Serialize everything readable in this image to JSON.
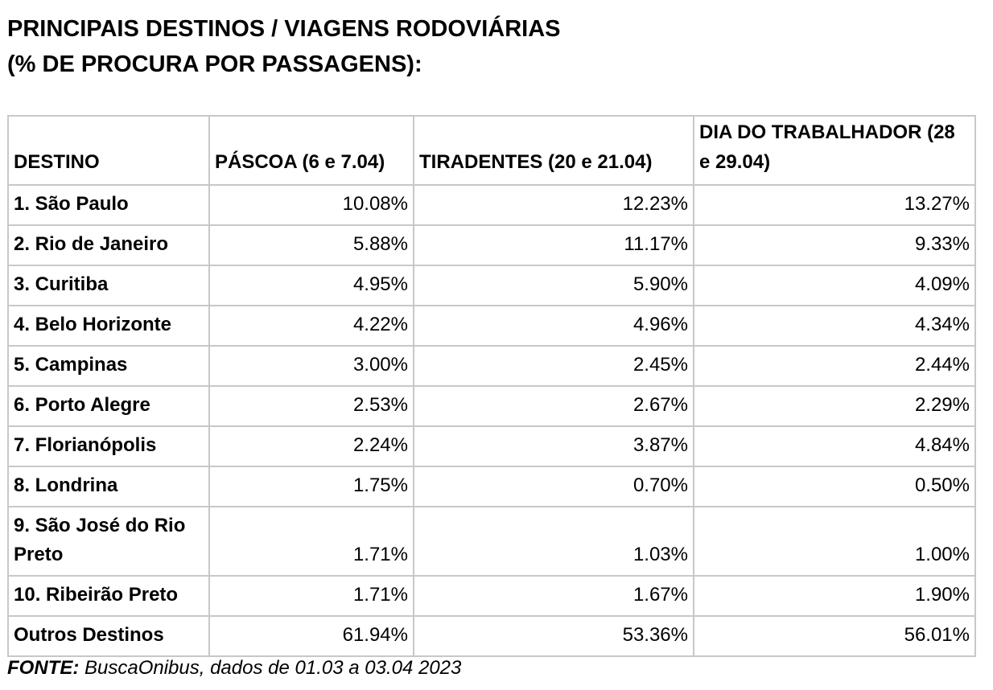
{
  "title": {
    "line1": "PRINCIPAIS DESTINOS / VIAGENS RODOVIÁRIAS",
    "line2": "(% DE PROCURA POR PASSAGENS):"
  },
  "table": {
    "headers": [
      "DESTINO",
      "PÁSCOA (6 e 7.04)",
      "TIRADENTES (20 e 21.04)",
      "DIA DO TRABALHADOR (28 e 29.04)"
    ],
    "rows": [
      {
        "destino": "1. São Paulo",
        "pascoa": "10.08%",
        "tiradentes": "12.23%",
        "trabalhador": "13.27%"
      },
      {
        "destino": "2. Rio de Janeiro",
        "pascoa": "5.88%",
        "tiradentes": "11.17%",
        "trabalhador": "9.33%"
      },
      {
        "destino": "3. Curitiba",
        "pascoa": "4.95%",
        "tiradentes": "5.90%",
        "trabalhador": "4.09%"
      },
      {
        "destino": "4. Belo Horizonte",
        "pascoa": "4.22%",
        "tiradentes": "4.96%",
        "trabalhador": "4.34%"
      },
      {
        "destino": "5. Campinas",
        "pascoa": "3.00%",
        "tiradentes": "2.45%",
        "trabalhador": "2.44%"
      },
      {
        "destino": "6. Porto Alegre",
        "pascoa": "2.53%",
        "tiradentes": "2.67%",
        "trabalhador": "2.29%"
      },
      {
        "destino": "7. Florianópolis",
        "pascoa": "2.24%",
        "tiradentes": "3.87%",
        "trabalhador": "4.84%"
      },
      {
        "destino": "8. Londrina",
        "pascoa": "1.75%",
        "tiradentes": "0.70%",
        "trabalhador": "0.50%"
      },
      {
        "destino": "9. São José do Rio Preto",
        "pascoa": "1.71%",
        "tiradentes": "1.03%",
        "trabalhador": "1.00%"
      },
      {
        "destino": "10. Ribeirão Preto",
        "pascoa": "1.71%",
        "tiradentes": "1.67%",
        "trabalhador": "1.90%"
      },
      {
        "destino": "Outros Destinos",
        "pascoa": "61.94%",
        "tiradentes": "53.36%",
        "trabalhador": "56.01%"
      }
    ]
  },
  "source": {
    "label": "FONTE:",
    "text": " BuscaOnibus, dados de 01.03 a 03.04 2023"
  }
}
